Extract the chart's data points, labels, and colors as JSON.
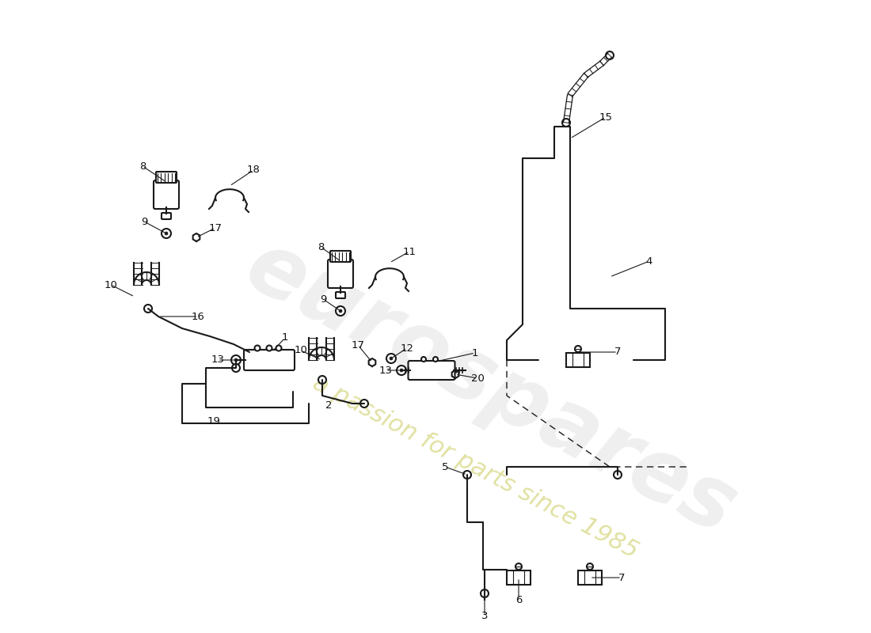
{
  "bg_color": "#ffffff",
  "line_color": "#1a1a1a",
  "label_color": "#111111",
  "watermark1": "eurospares",
  "watermark2": "a passion for parts since 1985",
  "wm_gray": "#c8c8c8",
  "wm_yellow": "#d4d470"
}
